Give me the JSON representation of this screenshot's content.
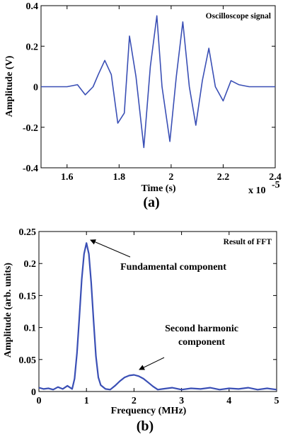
{
  "chart_data": [
    {
      "type": "line",
      "panel_label": "(a)",
      "annotation": "Oscilloscope signal",
      "xlabel": "Time (s)",
      "ylabel": "Amplitude (V)",
      "x_multiplier": "x 10",
      "x_multiplier_exp": "-5",
      "xlim": [
        1.5,
        2.4
      ],
      "ylim": [
        -0.4,
        0.4
      ],
      "xticks": [
        1.6,
        1.8,
        2.0,
        2.2,
        2.4
      ],
      "xtick_labels": [
        "1.6",
        "1.8",
        "2",
        "2.2",
        "2.4"
      ],
      "yticks": [
        -0.4,
        -0.2,
        0,
        0.2,
        0.4
      ],
      "ytick_labels": [
        "-0.4",
        "-0.2",
        "0",
        "0.2",
        "0.4"
      ],
      "series": [
        {
          "color": "#3a4fb5",
          "x": [
            1.5,
            1.6,
            1.64,
            1.67,
            1.7,
            1.72,
            1.745,
            1.77,
            1.795,
            1.82,
            1.84,
            1.865,
            1.895,
            1.92,
            1.945,
            1.965,
            1.995,
            2.02,
            2.045,
            2.07,
            2.095,
            2.12,
            2.145,
            2.17,
            2.2,
            2.23,
            2.26,
            2.3,
            2.4
          ],
          "y": [
            0.0,
            0.0,
            0.01,
            -0.04,
            0.0,
            0.06,
            0.13,
            0.06,
            -0.18,
            -0.13,
            0.25,
            0.05,
            -0.3,
            0.1,
            0.35,
            0.0,
            -0.27,
            0.05,
            0.32,
            0.0,
            -0.19,
            0.03,
            0.19,
            0.0,
            -0.07,
            0.03,
            0.01,
            0.0,
            0.0
          ]
        }
      ]
    },
    {
      "type": "line",
      "panel_label": "(b)",
      "annotation": "Result of FFT",
      "xlabel": "Frequency (MHz)",
      "ylabel": "Amplitude (arb. units)",
      "xlim": [
        0,
        5
      ],
      "ylim": [
        0,
        0.25
      ],
      "xticks": [
        0,
        1,
        2,
        3,
        4,
        5
      ],
      "xtick_labels": [
        "0",
        "1",
        "2",
        "3",
        "4",
        "5"
      ],
      "yticks": [
        0,
        0.05,
        0.1,
        0.15,
        0.2,
        0.25
      ],
      "ytick_labels": [
        "0",
        "0.05",
        "0.1",
        "0.15",
        "0.2",
        "0.25"
      ],
      "callouts": [
        {
          "text_lines": [
            "Fundamental component"
          ],
          "point": [
            1.0,
            0.232
          ]
        },
        {
          "text_lines": [
            "Second harmonic",
            "component"
          ],
          "point": [
            2.05,
            0.027
          ]
        }
      ],
      "series": [
        {
          "color": "#3a4fb5",
          "x": [
            0.0,
            0.1,
            0.2,
            0.3,
            0.4,
            0.5,
            0.6,
            0.7,
            0.75,
            0.8,
            0.85,
            0.9,
            0.95,
            1.0,
            1.05,
            1.1,
            1.15,
            1.2,
            1.25,
            1.3,
            1.4,
            1.5,
            1.6,
            1.7,
            1.8,
            1.9,
            2.0,
            2.1,
            2.2,
            2.3,
            2.4,
            2.5,
            2.6,
            2.8,
            3.0,
            3.2,
            3.4,
            3.6,
            3.8,
            4.0,
            4.2,
            4.4,
            4.6,
            4.8,
            5.0
          ],
          "y": [
            0.006,
            0.004,
            0.005,
            0.003,
            0.007,
            0.004,
            0.009,
            0.004,
            0.02,
            0.06,
            0.115,
            0.175,
            0.215,
            0.232,
            0.215,
            0.17,
            0.11,
            0.055,
            0.022,
            0.01,
            0.004,
            0.003,
            0.009,
            0.016,
            0.022,
            0.025,
            0.026,
            0.024,
            0.02,
            0.014,
            0.008,
            0.003,
            0.004,
            0.006,
            0.003,
            0.005,
            0.004,
            0.006,
            0.003,
            0.005,
            0.004,
            0.006,
            0.003,
            0.005,
            0.003
          ]
        }
      ]
    }
  ]
}
